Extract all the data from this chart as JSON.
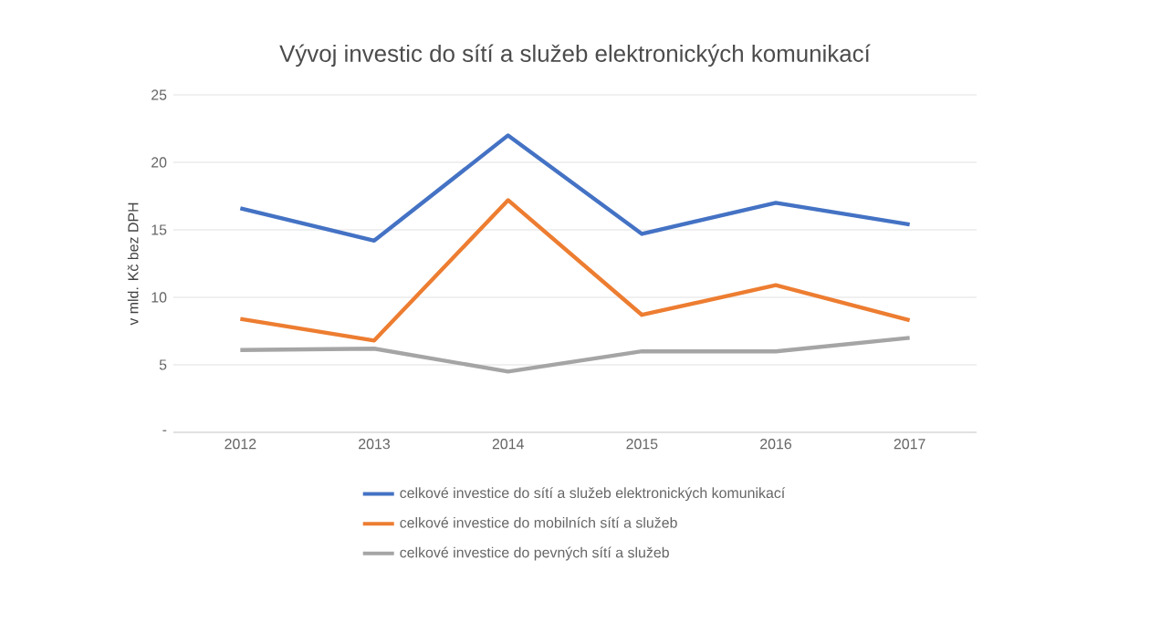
{
  "chart_data": {
    "type": "line",
    "title": "Vývoj investic do sítí a služeb elektronických komunikací",
    "ylabel": "v mld. Kč bez DPH",
    "categories": [
      "2012",
      "2013",
      "2014",
      "2015",
      "2016",
      "2017"
    ],
    "series": [
      {
        "name": "celkové investice do sítí a služeb elektronických komunikací",
        "color": "#4472c4",
        "values": [
          16.6,
          14.2,
          22.0,
          14.7,
          17.0,
          15.4
        ]
      },
      {
        "name": "celkové investice do mobilních sítí a služeb",
        "color": "#ed7d31",
        "values": [
          8.4,
          6.8,
          17.2,
          8.7,
          10.9,
          8.3
        ]
      },
      {
        "name": "celkové investice do pevných  sítí a služeb",
        "color": "#a5a5a5",
        "values": [
          6.1,
          6.2,
          4.5,
          6.0,
          6.0,
          7.0
        ]
      }
    ],
    "ylim": [
      0,
      25
    ],
    "yticks": [
      {
        "value": 0,
        "label": "-"
      },
      5,
      10,
      15,
      20,
      25
    ],
    "grid": "y",
    "legend": "bottom",
    "marker": "none",
    "line_style": "solid"
  }
}
